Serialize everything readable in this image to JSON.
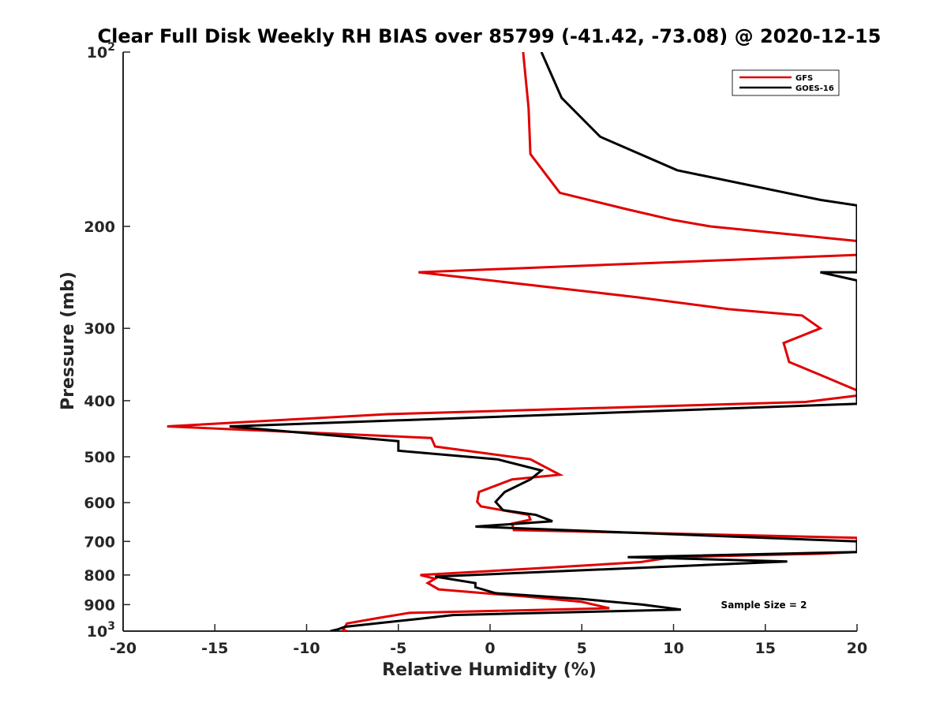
{
  "chart_data": {
    "type": "line",
    "title": "Clear Full Disk Weekly RH BIAS over 85799 (-41.42, -73.08) @ 2020-12-15",
    "xlabel": "Relative Humidity (%)",
    "ylabel": "Pressure (mb)",
    "xlim": [
      -20,
      20
    ],
    "ylim": [
      100,
      1000
    ],
    "yscale": "log",
    "y_reversed": true,
    "xticks": [
      -20,
      -15,
      -10,
      -5,
      0,
      5,
      10,
      15,
      20
    ],
    "xtick_labels": [
      "-20",
      "-15",
      "-10",
      "-5",
      "0",
      "5",
      "10",
      "15",
      "20"
    ],
    "yticks": [
      100,
      200,
      300,
      400,
      500,
      600,
      700,
      800,
      900,
      1000
    ],
    "ytick_labels": [
      {
        "base": "10",
        "exp": "2"
      },
      {
        "base": "200",
        "exp": ""
      },
      {
        "base": "300",
        "exp": ""
      },
      {
        "base": "400",
        "exp": ""
      },
      {
        "base": "500",
        "exp": ""
      },
      {
        "base": "600",
        "exp": ""
      },
      {
        "base": "700",
        "exp": ""
      },
      {
        "base": "800",
        "exp": ""
      },
      {
        "base": "900",
        "exp": ""
      },
      {
        "base": "10",
        "exp": "3"
      }
    ],
    "grid": false,
    "legend_position": "top-right",
    "annotation": "Sample Size = 2",
    "series": [
      {
        "name": "GFS",
        "color": "#e00000",
        "points": [
          [
            1.8,
            100
          ],
          [
            2.1,
            125
          ],
          [
            2.2,
            150
          ],
          [
            3.8,
            175
          ],
          [
            7.5,
            187
          ],
          [
            10.0,
            195
          ],
          [
            12.0,
            200
          ],
          [
            20.0,
            212
          ],
          [
            20.0,
            224
          ],
          [
            -3.9,
            240
          ],
          [
            8.0,
            265
          ],
          [
            13.0,
            278
          ],
          [
            17.0,
            285
          ],
          [
            18.0,
            300
          ],
          [
            16.0,
            318
          ],
          [
            16.3,
            343
          ],
          [
            18.0,
            361
          ],
          [
            20.0,
            384
          ],
          [
            20.0,
            392
          ],
          [
            17.2,
            402
          ],
          [
            -5.6,
            422
          ],
          [
            -17.6,
            443
          ],
          [
            -3.2,
            464
          ],
          [
            -3.0,
            480
          ],
          [
            2.2,
            505
          ],
          [
            3.8,
            537
          ],
          [
            1.2,
            547
          ],
          [
            -0.6,
            575
          ],
          [
            -0.7,
            598
          ],
          [
            -0.5,
            609
          ],
          [
            2.1,
            630
          ],
          [
            2.2,
            642
          ],
          [
            1.2,
            652
          ],
          [
            1.3,
            669
          ],
          [
            20.0,
            690
          ],
          [
            20.0,
            730
          ],
          [
            18.0,
            735
          ],
          [
            10.0,
            745
          ],
          [
            8.2,
            760
          ],
          [
            2.3,
            780
          ],
          [
            -3.8,
            800
          ],
          [
            -3.0,
            812
          ],
          [
            -3.4,
            826
          ],
          [
            -2.8,
            847
          ],
          [
            2.0,
            872
          ],
          [
            5.0,
            890
          ],
          [
            6.5,
            913
          ],
          [
            -4.4,
            930
          ],
          [
            -6.0,
            948
          ],
          [
            -7.8,
            970
          ],
          [
            -8.0,
            995
          ],
          [
            -7.8,
            1000
          ]
        ]
      },
      {
        "name": "GOES-16",
        "color": "#000000",
        "points": [
          [
            2.8,
            100
          ],
          [
            3.9,
            120
          ],
          [
            6.0,
            140
          ],
          [
            10.2,
            160
          ],
          [
            18.0,
            180
          ],
          [
            20.0,
            184
          ],
          [
            20.0,
            240
          ],
          [
            18.0,
            240
          ],
          [
            20.0,
            248
          ],
          [
            20.0,
            405
          ],
          [
            -14.2,
            443
          ],
          [
            -5.0,
            470
          ],
          [
            -5.0,
            488
          ],
          [
            0.4,
            505
          ],
          [
            2.8,
            528
          ],
          [
            2.2,
            547
          ],
          [
            0.8,
            575
          ],
          [
            0.3,
            598
          ],
          [
            0.7,
            618
          ],
          [
            2.5,
            630
          ],
          [
            3.4,
            646
          ],
          [
            -0.8,
            660
          ],
          [
            20.0,
            700
          ],
          [
            20.0,
            730
          ],
          [
            7.5,
            745
          ],
          [
            16.2,
            758
          ],
          [
            -3.0,
            805
          ],
          [
            -0.8,
            826
          ],
          [
            -0.8,
            840
          ],
          [
            0.3,
            860
          ],
          [
            5.0,
            880
          ],
          [
            8.3,
            900
          ],
          [
            10.4,
            918
          ],
          [
            -2.0,
            938
          ],
          [
            -4.0,
            953
          ],
          [
            -7.9,
            983
          ],
          [
            -8.3,
            993
          ],
          [
            -8.7,
            1000
          ]
        ]
      }
    ]
  }
}
